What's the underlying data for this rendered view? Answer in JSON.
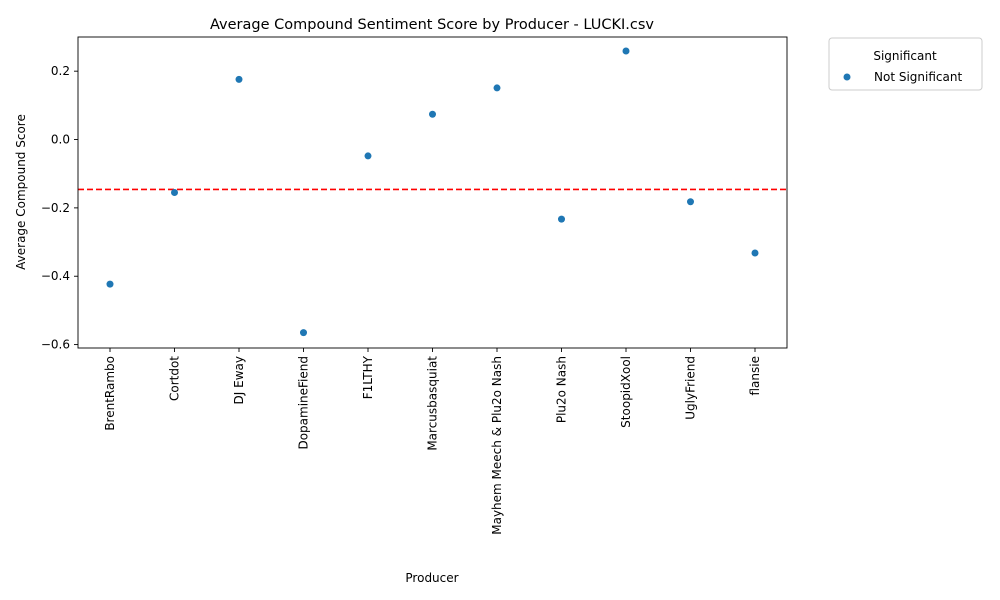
{
  "chart_data": {
    "type": "scatter",
    "title": "Average Compound Sentiment Score by Producer - LUCKI.csv",
    "xlabel": "Producer",
    "ylabel": "Average Compound Score",
    "categories": [
      "BrentRambo",
      "Cortdot",
      "DJ Eway",
      "DopamineFiend",
      "F1LTHY",
      "Marcusbasquiat",
      "Mayhem Meech & Plu2o Nash",
      "Plu2o Nash",
      "StoopidXool",
      "UglyFriend",
      "flansie"
    ],
    "series": [
      {
        "name": "Not Significant",
        "color": "#1f77b4",
        "values": [
          -0.423,
          -0.155,
          0.176,
          -0.565,
          -0.048,
          0.074,
          0.151,
          -0.233,
          0.259,
          -0.182,
          -0.332
        ]
      }
    ],
    "reference_line": {
      "value": -0.146,
      "color": "#ff0000",
      "style": "dashed"
    },
    "ylim": [
      -0.61,
      0.3
    ],
    "yticks": [
      -0.6,
      -0.4,
      -0.2,
      0.0,
      0.2
    ],
    "ytick_labels": [
      "−0.6",
      "−0.4",
      "−0.2",
      "0.0",
      "0.2"
    ],
    "grid": false,
    "legend": {
      "title": "Significant",
      "placement": "outside-top-right",
      "entries": [
        "Not Significant"
      ]
    }
  }
}
